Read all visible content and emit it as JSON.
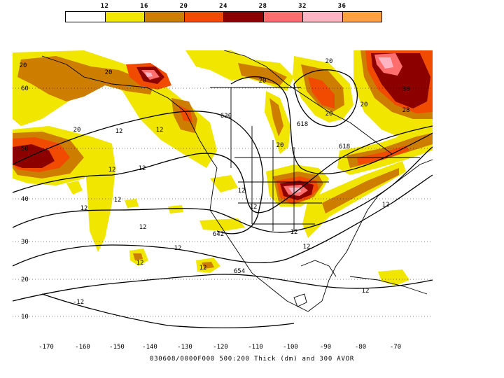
{
  "legend": {
    "labels": [
      "12",
      "16",
      "20",
      "24",
      "28",
      "32",
      "36"
    ],
    "colors": [
      "#ffffff",
      "#f0e600",
      "#cd7d00",
      "#f04b00",
      "#8c0000",
      "#ff6e6e",
      "#ffb4c3",
      "#ffa041"
    ]
  },
  "axes": {
    "lon_labels": [
      "-170",
      "-160",
      "-150",
      "-140",
      "-130",
      "-120",
      "-110",
      "-100",
      "-90",
      "-80",
      "-70"
    ],
    "lat_labels": [
      "60",
      "50",
      "40",
      "30",
      "20",
      "10"
    ]
  },
  "contour_labels": {
    "thickness": [
      "630",
      "618",
      "618",
      "642",
      "654"
    ],
    "vorticity": [
      "12",
      "12",
      "12",
      "12",
      "12",
      "12",
      "12",
      "12",
      "12",
      "12",
      "12",
      "12",
      "12",
      "12",
      "12",
      "12",
      "-12",
      "20",
      "20",
      "20",
      "20",
      "20",
      "20",
      "20",
      "20",
      "28",
      "30"
    ]
  },
  "caption": "030608/0000F000 500:200 Thick (dm) and 300 AVOR"
}
